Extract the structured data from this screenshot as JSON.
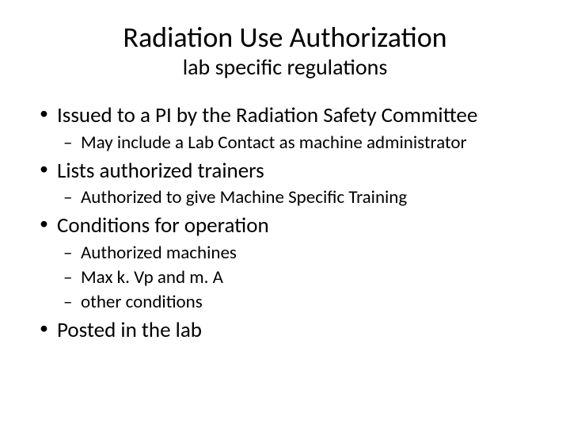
{
  "title": "Radiation Use Authorization",
  "subtitle": "lab specific regulations",
  "bullets": [
    {
      "text": "Issued to a PI by the Radiation Safety Committee",
      "children": [
        {
          "text": "May include a Lab Contact as machine administrator"
        }
      ]
    },
    {
      "text": "Lists authorized trainers",
      "children": [
        {
          "text": "Authorized to give Machine Specific Training"
        }
      ]
    },
    {
      "text": "Conditions for operation",
      "children": [
        {
          "text": "Authorized machines"
        },
        {
          "text": "Max k. Vp and m. A"
        },
        {
          "text": "other conditions"
        }
      ]
    },
    {
      "text": "Posted in the lab",
      "children": []
    }
  ],
  "colors": {
    "background": "#ffffff",
    "text": "#000000"
  },
  "typography": {
    "title_fontsize": 36,
    "subtitle_fontsize": 28,
    "bullet_fontsize": 28,
    "subbullet_fontsize": 24,
    "font_family": "Calibri"
  }
}
